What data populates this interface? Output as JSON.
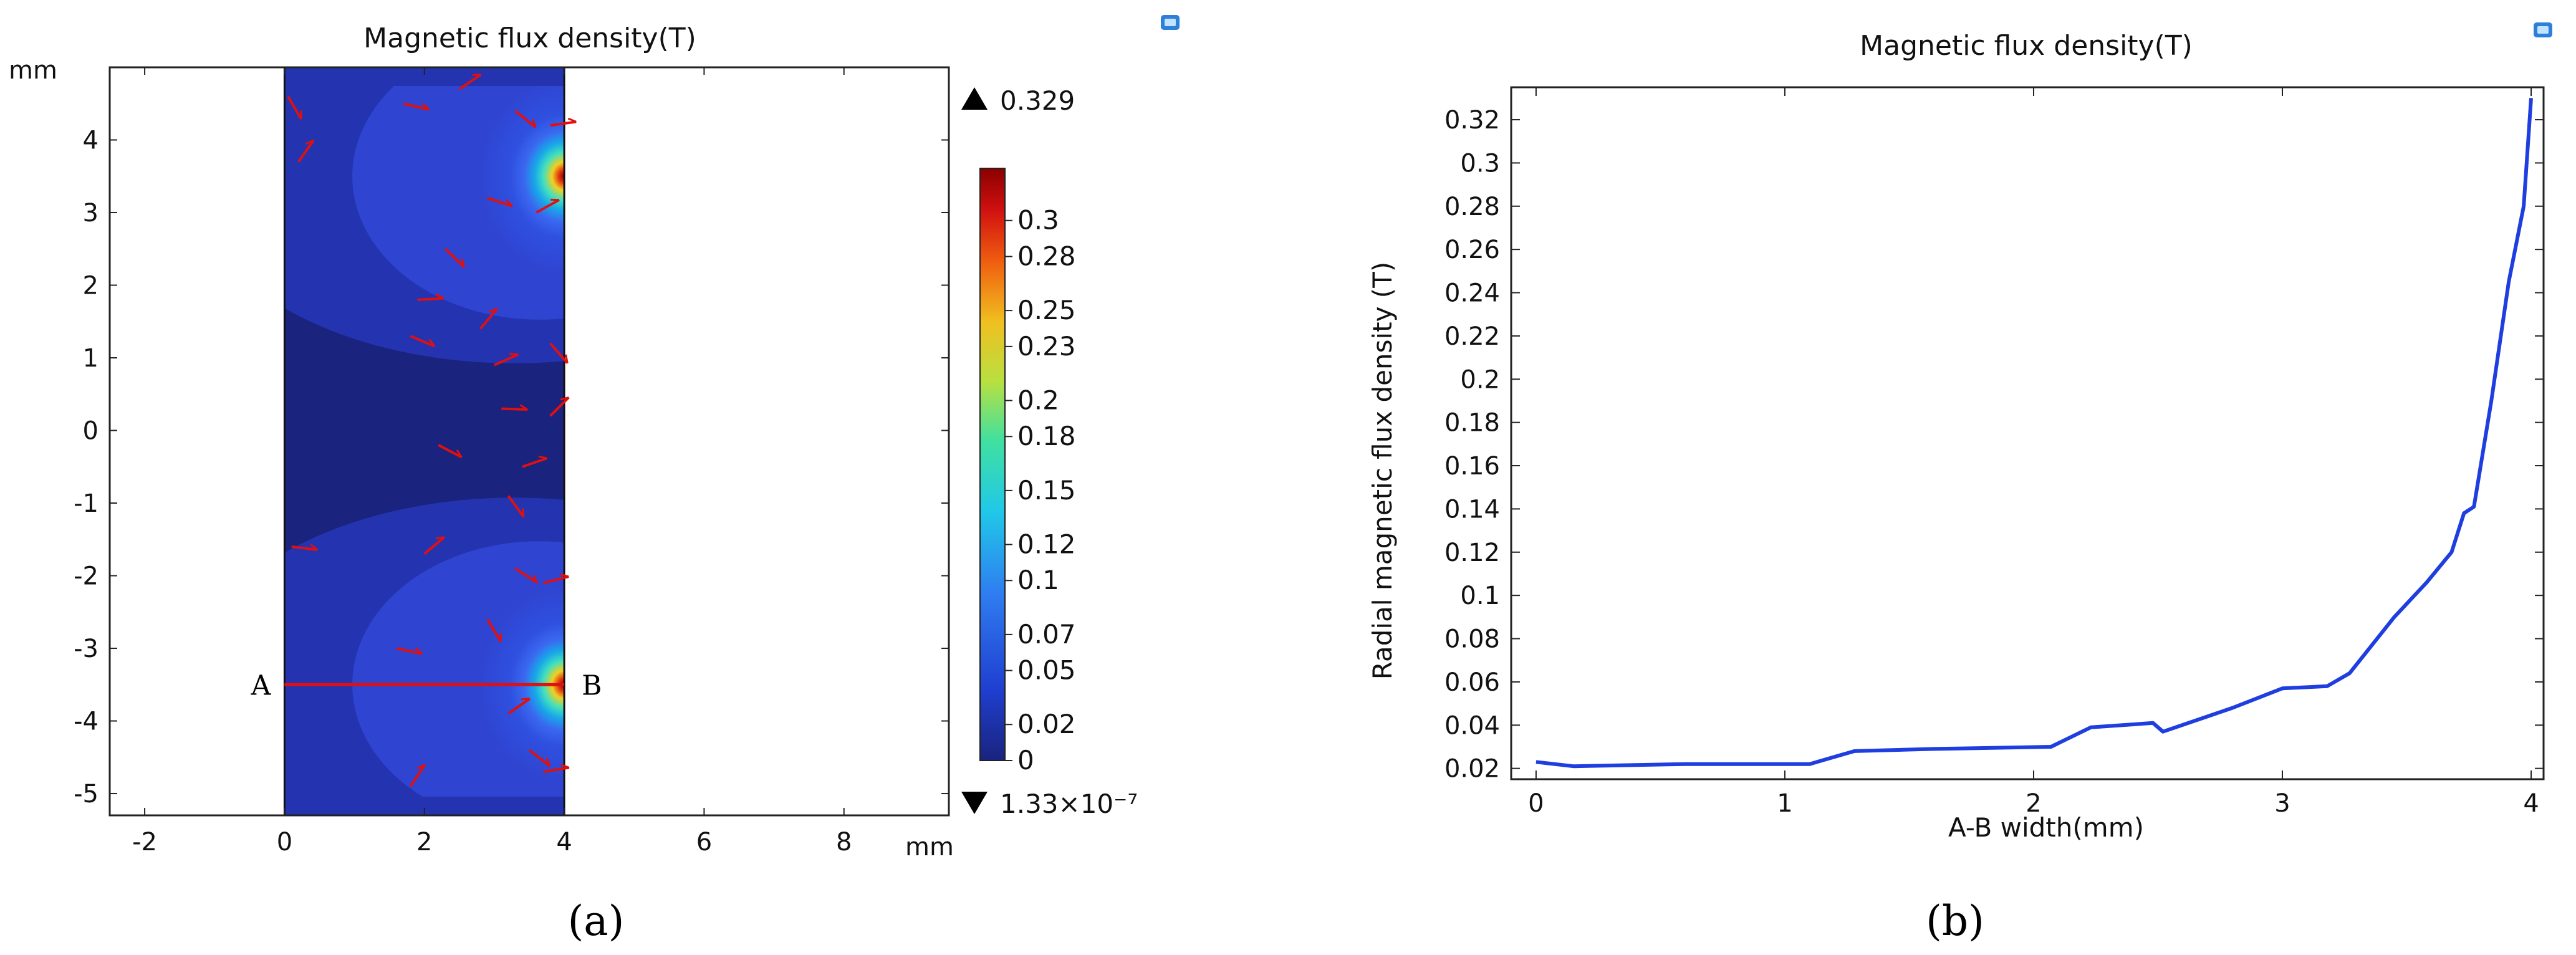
{
  "figure": {
    "panel_a_label": "(a)",
    "panel_b_label": "(b)"
  },
  "chart_data": [
    {
      "type": "heatmap",
      "title": "Magnetic flux density(T)",
      "x_unit": "mm",
      "y_unit": "mm",
      "xlim": [
        -2.5,
        9.5
      ],
      "ylim": [
        -5.3,
        5.0
      ],
      "x_ticks": [
        -2,
        0,
        2,
        4,
        6,
        8
      ],
      "y_ticks": [
        4,
        3,
        2,
        1,
        0,
        -1,
        -2,
        -3,
        -4,
        -5
      ],
      "domain_x": [
        0,
        4
      ],
      "line": {
        "from_label": "A",
        "to_label": "B",
        "y": -3.5,
        "x": [
          0,
          4
        ]
      },
      "sources": [
        {
          "x": 4,
          "y": 3.5
        },
        {
          "x": 4,
          "y": -3.5
        }
      ],
      "colorbar": {
        "max_label": "0.329",
        "min_label": "1.33×10⁻⁷",
        "tick_labels": [
          "0.3",
          "0.28",
          "0.25",
          "0.23",
          "0.2",
          "0.18",
          "0.15",
          "0.12",
          "0.1",
          "0.07",
          "0.05",
          "0.02",
          "0"
        ],
        "tick_values": [
          0.3,
          0.28,
          0.25,
          0.23,
          0.2,
          0.18,
          0.15,
          0.12,
          0.1,
          0.07,
          0.05,
          0.02,
          0
        ],
        "range": [
          0,
          0.329
        ]
      },
      "colors": {
        "dark": "#1a237e",
        "mid": "#2f44d0",
        "arrow": "#e01010",
        "line": "#e01010"
      }
    },
    {
      "type": "line",
      "title": "Magnetic flux density(T)",
      "xlabel": "A-B width(mm)",
      "ylabel": "Radial magnetic flux density (T)",
      "xlim": [
        -0.1,
        4.05
      ],
      "ylim": [
        0.015,
        0.335
      ],
      "x_ticks": [
        0,
        1,
        2,
        3,
        4
      ],
      "x_tick_labels": [
        "0",
        "1",
        "2",
        "3",
        "4"
      ],
      "y_ticks": [
        0.02,
        0.04,
        0.06,
        0.08,
        0.1,
        0.12,
        0.14,
        0.16,
        0.18,
        0.2,
        0.22,
        0.24,
        0.26,
        0.28,
        0.3,
        0.32
      ],
      "y_tick_labels": [
        "0.02",
        "0.04",
        "0.06",
        "0.08",
        "0.1",
        "0.12",
        "0.14",
        "0.16",
        "0.18",
        "0.2",
        "0.22",
        "0.24",
        "0.26",
        "0.28",
        "0.3",
        "0.32"
      ],
      "series": [
        {
          "color": "#1f3ee0",
          "x": [
            0,
            0.15,
            0.6,
            1.1,
            1.28,
            1.6,
            2.07,
            2.23,
            2.48,
            2.52,
            2.8,
            3.0,
            3.18,
            3.27,
            3.45,
            3.58,
            3.68,
            3.73,
            3.77,
            3.84,
            3.91,
            3.97,
            4.0
          ],
          "y": [
            0.023,
            0.021,
            0.022,
            0.022,
            0.028,
            0.029,
            0.03,
            0.039,
            0.041,
            0.037,
            0.048,
            0.057,
            0.058,
            0.064,
            0.09,
            0.106,
            0.12,
            0.138,
            0.141,
            0.19,
            0.245,
            0.28,
            0.33
          ]
        }
      ]
    }
  ]
}
